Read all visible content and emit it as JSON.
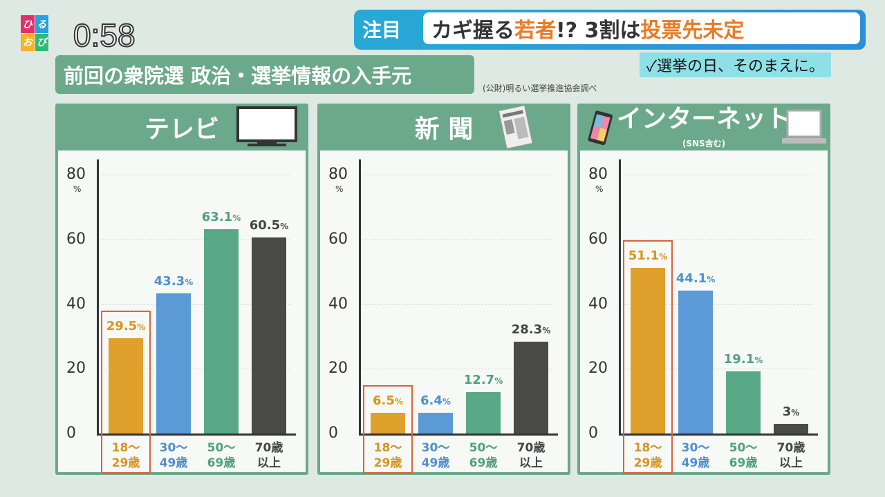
{
  "logo": {
    "chars": [
      "ひ",
      "る",
      "お",
      "び"
    ]
  },
  "clock": "0:58",
  "headline": {
    "tag": "注目",
    "part1": "カギ握る",
    "part2": "若者",
    "part3": "!? 3割は",
    "part4": "投票先未定"
  },
  "subtitle": "✓選挙の日、そのまえに。",
  "title": "前回の衆院選 政治・選挙情報の入手元",
  "source": "(公財)明るい選挙推進協会調べ",
  "colors": [
    "#e0a02c",
    "#5b9ad6",
    "#5aa986",
    "#4a4a46"
  ],
  "label_colors": [
    "#d9941e",
    "#4f8fd0",
    "#4fa07d",
    "#444444"
  ],
  "chart_data": [
    {
      "type": "bar",
      "title": "テレビ",
      "subtitle": "",
      "icon": "tv-icon",
      "categories": [
        "18〜\n29歳",
        "30〜\n49歳",
        "50〜\n69歳",
        "70歳\n以上"
      ],
      "values": [
        29.5,
        43.3,
        63.1,
        60.5
      ],
      "value_labels": [
        "29.5",
        "43.3",
        "63.1",
        "60.5"
      ],
      "unit": "%",
      "yticks": [
        "0",
        "20",
        "40",
        "60",
        "80"
      ],
      "ylim": [
        0,
        80
      ],
      "highlight": 0
    },
    {
      "type": "bar",
      "title": "新 聞",
      "subtitle": "",
      "icon": "newspaper-icon",
      "categories": [
        "18〜\n29歳",
        "30〜\n49歳",
        "50〜\n69歳",
        "70歳\n以上"
      ],
      "values": [
        6.5,
        6.4,
        12.7,
        28.3
      ],
      "value_labels": [
        "6.5",
        "6.4",
        "12.7",
        "28.3"
      ],
      "unit": "%",
      "yticks": [
        "0",
        "20",
        "40",
        "60",
        "80"
      ],
      "ylim": [
        0,
        80
      ],
      "highlight": 0
    },
    {
      "type": "bar",
      "title": "インターネット",
      "subtitle": "(SNS含む)",
      "icon": "smartphone-laptop-icon",
      "categories": [
        "18〜\n29歳",
        "30〜\n49歳",
        "50〜\n69歳",
        "70歳\n以上"
      ],
      "values": [
        51.1,
        44.1,
        19.1,
        3
      ],
      "value_labels": [
        "51.1",
        "44.1",
        "19.1",
        "3"
      ],
      "unit": "%",
      "yticks": [
        "0",
        "20",
        "40",
        "60",
        "80"
      ],
      "ylim": [
        0,
        80
      ],
      "highlight": 0
    }
  ]
}
